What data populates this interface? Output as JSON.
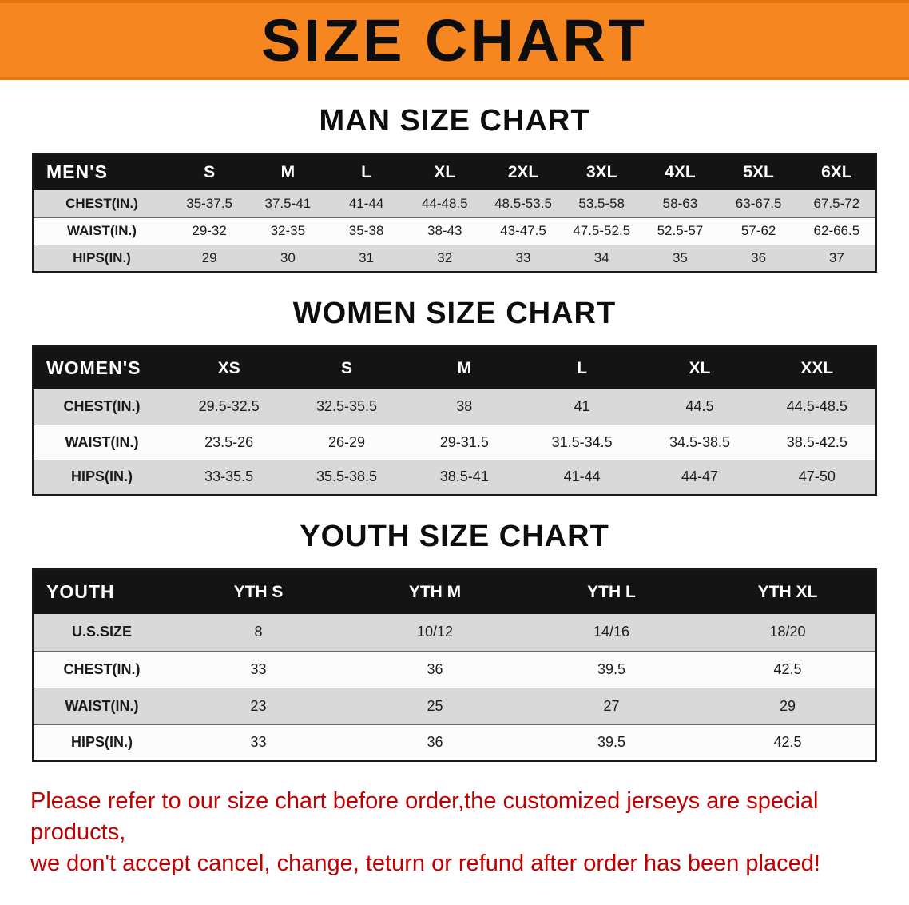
{
  "banner": {
    "title": "SIZE CHART",
    "bg_color": "#F6861F",
    "text_color": "#0d0d0d"
  },
  "sections": [
    {
      "heading": "MAN SIZE CHART",
      "table": {
        "label": "MEN'S",
        "columns": [
          "S",
          "M",
          "L",
          "XL",
          "2XL",
          "3XL",
          "4XL",
          "5XL",
          "6XL"
        ],
        "rows": [
          {
            "label": "CHEST(IN.)",
            "values": [
              "35-37.5",
              "37.5-41",
              "41-44",
              "44-48.5",
              "48.5-53.5",
              "53.5-58",
              "58-63",
              "63-67.5",
              "67.5-72"
            ]
          },
          {
            "label": "WAIST(IN.)",
            "values": [
              "29-32",
              "32-35",
              "35-38",
              "38-43",
              "43-47.5",
              "47.5-52.5",
              "52.5-57",
              "57-62",
              "62-66.5"
            ]
          },
          {
            "label": "HIPS(IN.)",
            "values": [
              "29",
              "30",
              "31",
              "32",
              "33",
              "34",
              "35",
              "36",
              "37"
            ]
          }
        ]
      }
    },
    {
      "heading": "WOMEN SIZE CHART",
      "table": {
        "label": "WOMEN'S",
        "columns": [
          "XS",
          "S",
          "M",
          "L",
          "XL",
          "XXL"
        ],
        "rows": [
          {
            "label": "CHEST(IN.)",
            "values": [
              "29.5-32.5",
              "32.5-35.5",
              "38",
              "41",
              "44.5",
              "44.5-48.5"
            ]
          },
          {
            "label": "WAIST(IN.)",
            "values": [
              "23.5-26",
              "26-29",
              "29-31.5",
              "31.5-34.5",
              "34.5-38.5",
              "38.5-42.5"
            ]
          },
          {
            "label": "HIPS(IN.)",
            "values": [
              "33-35.5",
              "35.5-38.5",
              "38.5-41",
              "41-44",
              "44-47",
              "47-50"
            ]
          }
        ]
      }
    },
    {
      "heading": "YOUTH SIZE CHART",
      "table": {
        "label": "YOUTH",
        "columns": [
          "YTH S",
          "YTH M",
          "YTH L",
          "YTH XL"
        ],
        "rows": [
          {
            "label": "U.S.SIZE",
            "values": [
              "8",
              "10/12",
              "14/16",
              "18/20"
            ]
          },
          {
            "label": "CHEST(IN.)",
            "values": [
              "33",
              "36",
              "39.5",
              "42.5"
            ]
          },
          {
            "label": "WAIST(IN.)",
            "values": [
              "23",
              "25",
              "27",
              "29"
            ]
          },
          {
            "label": "HIPS(IN.)",
            "values": [
              "33",
              "36",
              "39.5",
              "42.5"
            ]
          }
        ]
      }
    }
  ],
  "footer": {
    "line1": "Please refer to our size chart before order,the customized jerseys are special products,",
    "line2": "we don't accept cancel, change, teturn or refund after order has been placed!",
    "text_color": "#C00000"
  }
}
